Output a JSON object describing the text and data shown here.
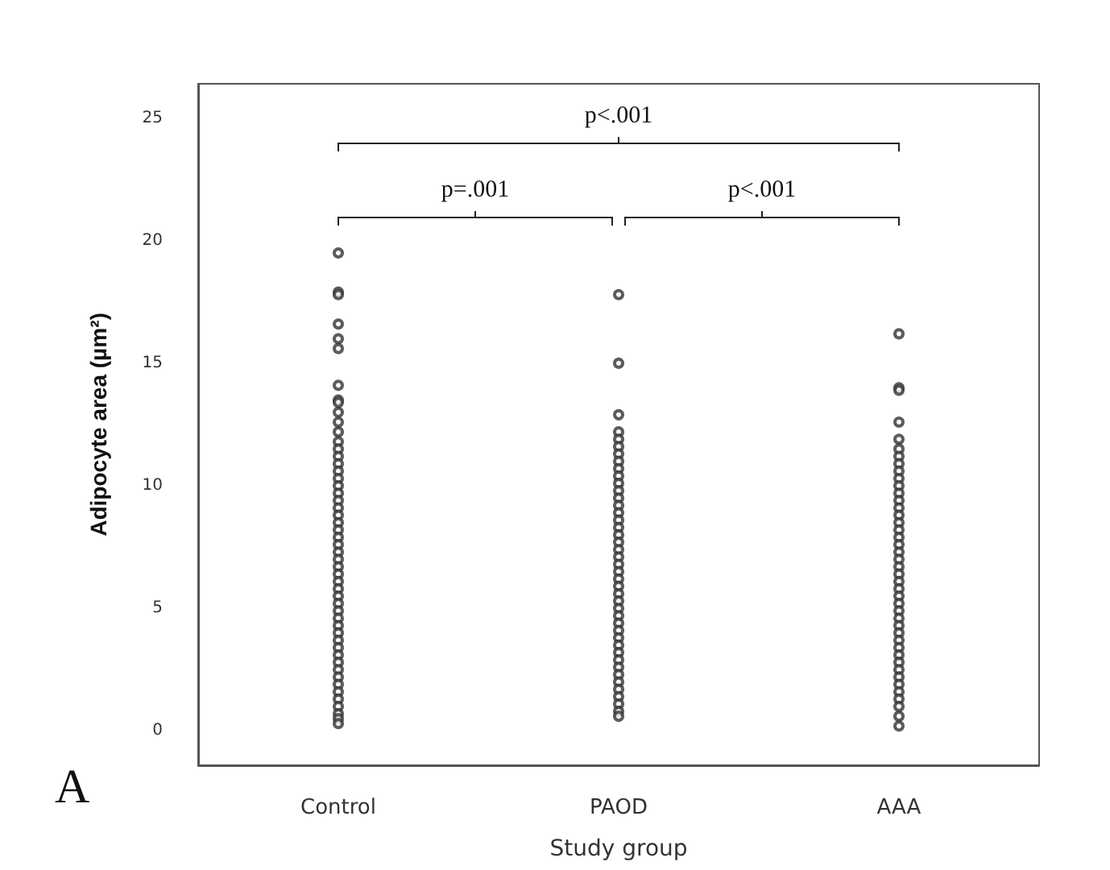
{
  "chart_data": {
    "type": "scatter",
    "xlabel": "Study group",
    "ylabel": "Adipocyte area (µm²)",
    "categories": [
      "Control",
      "PAOD",
      "AAA"
    ],
    "series": [
      {
        "color": "#333333",
        "x": [
          "Control",
          "Control",
          "Control",
          "Control",
          "Control",
          "Control",
          "Control",
          "Control",
          "Control",
          "Control",
          "Control",
          "Control",
          "Control",
          "Control",
          "Control",
          "Control",
          "Control",
          "Control",
          "Control",
          "Control",
          "Control",
          "Control",
          "Control",
          "Control",
          "Control",
          "Control",
          "Control",
          "Control",
          "Control",
          "Control",
          "Control",
          "Control",
          "Control",
          "Control",
          "Control",
          "Control",
          "Control",
          "Control",
          "Control",
          "Control",
          "Control",
          "Control",
          "Control",
          "Control",
          "Control",
          "Control",
          "Control",
          "Control",
          "Control",
          "Control",
          "Control",
          "Control"
        ],
        "values": [
          19.5,
          17.9,
          17.8,
          16.6,
          16.0,
          15.6,
          14.1,
          13.5,
          13.4,
          13.0,
          12.6,
          12.2,
          11.8,
          11.5,
          11.2,
          10.9,
          10.6,
          10.3,
          10.0,
          9.7,
          9.4,
          9.1,
          8.8,
          8.5,
          8.2,
          7.9,
          7.6,
          7.3,
          7.0,
          6.7,
          6.4,
          6.1,
          5.8,
          5.5,
          5.2,
          4.9,
          4.6,
          4.3,
          4.0,
          3.7,
          3.4,
          3.1,
          2.8,
          2.5,
          2.2,
          1.9,
          1.6,
          1.3,
          1.0,
          0.7,
          0.5,
          0.3
        ]
      },
      {
        "color": "#333333",
        "x": [
          "PAOD",
          "PAOD",
          "PAOD",
          "PAOD",
          "PAOD",
          "PAOD",
          "PAOD",
          "PAOD",
          "PAOD",
          "PAOD",
          "PAOD",
          "PAOD",
          "PAOD",
          "PAOD",
          "PAOD",
          "PAOD",
          "PAOD",
          "PAOD",
          "PAOD",
          "PAOD",
          "PAOD",
          "PAOD",
          "PAOD",
          "PAOD",
          "PAOD",
          "PAOD",
          "PAOD",
          "PAOD",
          "PAOD",
          "PAOD",
          "PAOD",
          "PAOD",
          "PAOD",
          "PAOD",
          "PAOD",
          "PAOD",
          "PAOD",
          "PAOD",
          "PAOD",
          "PAOD",
          "PAOD",
          "PAOD",
          "PAOD"
        ],
        "values": [
          17.8,
          15.0,
          12.9,
          12.2,
          11.9,
          11.6,
          11.3,
          11.0,
          10.7,
          10.4,
          10.1,
          9.8,
          9.5,
          9.2,
          8.9,
          8.6,
          8.3,
          8.0,
          7.7,
          7.4,
          7.1,
          6.8,
          6.5,
          6.2,
          5.9,
          5.6,
          5.3,
          5.0,
          4.7,
          4.4,
          4.1,
          3.8,
          3.5,
          3.2,
          2.9,
          2.6,
          2.3,
          2.0,
          1.7,
          1.4,
          1.1,
          0.8,
          0.6
        ]
      },
      {
        "color": "#333333",
        "x": [
          "AAA",
          "AAA",
          "AAA",
          "AAA",
          "AAA",
          "AAA",
          "AAA",
          "AAA",
          "AAA",
          "AAA",
          "AAA",
          "AAA",
          "AAA",
          "AAA",
          "AAA",
          "AAA",
          "AAA",
          "AAA",
          "AAA",
          "AAA",
          "AAA",
          "AAA",
          "AAA",
          "AAA",
          "AAA",
          "AAA",
          "AAA",
          "AAA",
          "AAA",
          "AAA",
          "AAA",
          "AAA",
          "AAA",
          "AAA",
          "AAA",
          "AAA",
          "AAA",
          "AAA",
          "AAA",
          "AAA",
          "AAA",
          "AAA",
          "AAA"
        ],
        "values": [
          16.2,
          14.0,
          13.9,
          12.6,
          11.9,
          11.5,
          11.2,
          10.9,
          10.6,
          10.3,
          10.0,
          9.7,
          9.4,
          9.1,
          8.8,
          8.5,
          8.2,
          7.9,
          7.6,
          7.3,
          7.0,
          6.7,
          6.4,
          6.1,
          5.8,
          5.5,
          5.2,
          4.9,
          4.6,
          4.3,
          4.0,
          3.7,
          3.4,
          3.1,
          2.8,
          2.5,
          2.2,
          1.9,
          1.6,
          1.3,
          1.0,
          0.6,
          0.2
        ]
      }
    ],
    "ylim": [
      -1.4,
      26.4
    ],
    "yticks": [
      0,
      5,
      10,
      15,
      20,
      25
    ],
    "grid": false,
    "marker": "circle",
    "annotations": [
      "p<.001",
      "p=.001",
      "p<.001",
      "A"
    ]
  }
}
